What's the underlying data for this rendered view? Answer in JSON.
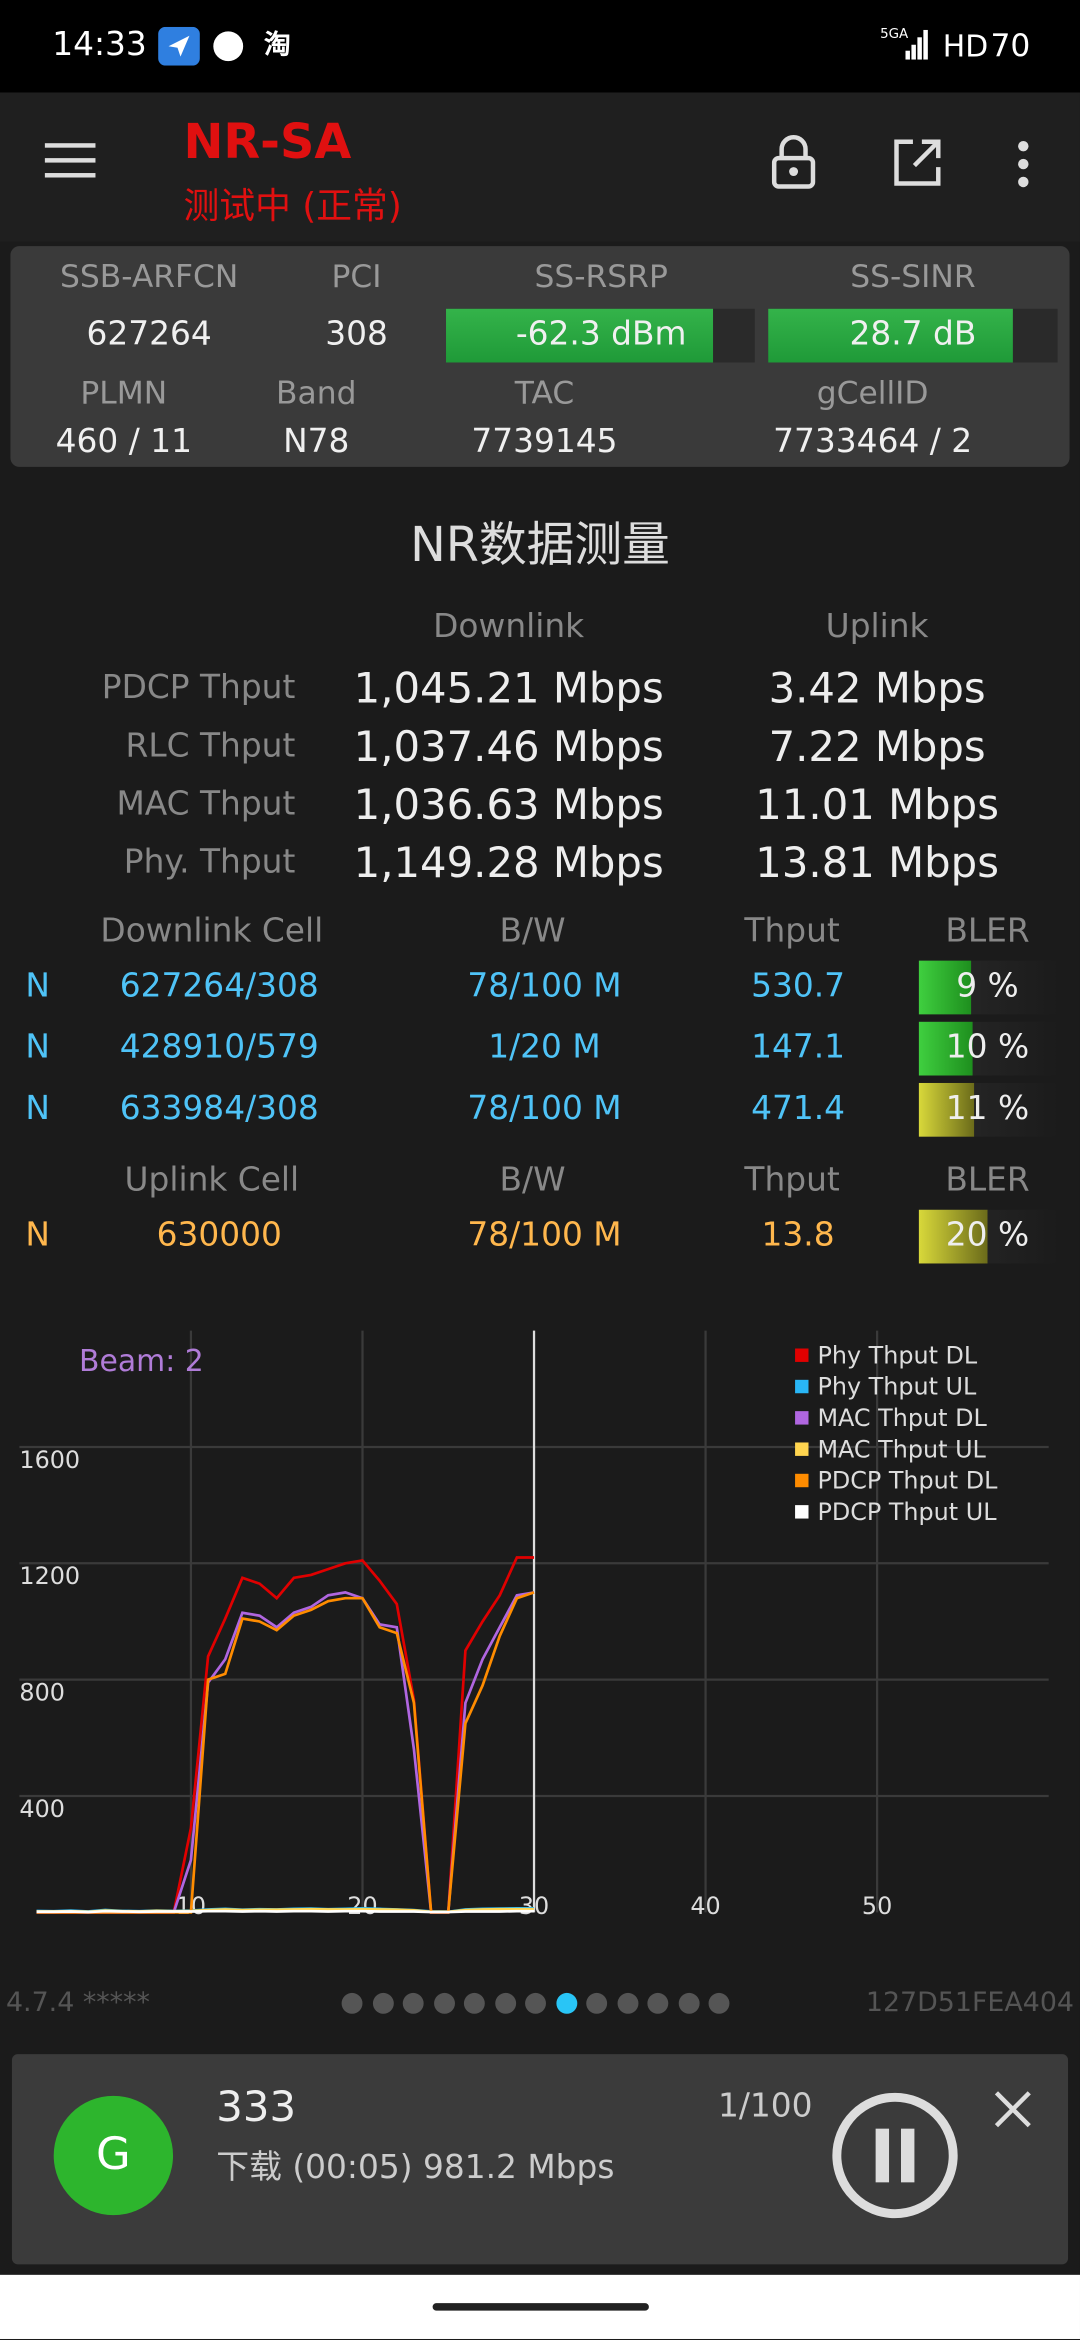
{
  "status_bar": {
    "time": "14:33",
    "app_icon": "淘",
    "network": "5GA",
    "hd": "HD",
    "battery": "70"
  },
  "header": {
    "title": "NR-SA",
    "status": "测试中 (正常)"
  },
  "serving_cell": {
    "labels_row1": [
      "SSB-ARFCN",
      "PCI",
      "SS-RSRP",
      "SS-SINR"
    ],
    "values_row1": [
      "627264",
      "308",
      "-62.3 dBm",
      "28.7 dB"
    ],
    "labels_row2": [
      "PLMN",
      "Band",
      "TAC",
      "gCellID"
    ],
    "values_row2": [
      "460 / 11",
      "N78",
      "7739145",
      "7733464 / 2"
    ]
  },
  "measurement": {
    "title": "NR数据测量",
    "columns": [
      "Downlink",
      "Uplink"
    ],
    "rows": [
      {
        "label": "PDCP Thput",
        "downlink": "1,045.21 Mbps",
        "uplink": "3.42 Mbps"
      },
      {
        "label": "RLC Thput",
        "downlink": "1,037.46 Mbps",
        "uplink": "7.22 Mbps"
      },
      {
        "label": "MAC Thput",
        "downlink": "1,036.63 Mbps",
        "uplink": "11.01 Mbps"
      },
      {
        "label": "Phy. Thput",
        "downlink": "1,149.28 Mbps",
        "uplink": "13.81 Mbps"
      }
    ]
  },
  "downlink_cells": {
    "columns": [
      "Downlink Cell",
      "B/W",
      "Thput",
      "BLER"
    ],
    "rows": [
      [
        "N",
        "627264/308",
        "78/100 M",
        "530.7",
        "9 %"
      ],
      [
        "N",
        "428910/579",
        "1/20 M",
        "147.1",
        "10 %"
      ],
      [
        "N",
        "633984/308",
        "78/100 M",
        "471.4",
        "11 %"
      ]
    ]
  },
  "uplink_cells": {
    "columns": [
      "Uplink Cell",
      "B/W",
      "Thput",
      "BLER"
    ],
    "rows": [
      [
        "N",
        "630000",
        "78/100 M",
        "13.8",
        "20 %"
      ]
    ]
  },
  "chart": {
    "type": "line",
    "annotation": "Beam: 2",
    "x": [
      1,
      2,
      3,
      4,
      5,
      6,
      7,
      8,
      9,
      10,
      11,
      12,
      13,
      14,
      15,
      16,
      17,
      18,
      19,
      20,
      21,
      22,
      23,
      24,
      25,
      26,
      27,
      28,
      29,
      30
    ],
    "xlim": [
      0,
      60
    ],
    "xticks": [
      10,
      20,
      30,
      40,
      50
    ],
    "ylim": [
      0,
      2000
    ],
    "yticks": [
      400,
      800,
      1200,
      1600
    ],
    "grid": true,
    "series": [
      {
        "name": "Phy Thput DL",
        "color": "#e00000",
        "values": [
          0,
          0,
          0,
          0,
          0,
          0,
          0,
          0,
          0,
          290,
          880,
          1010,
          1150,
          1130,
          1080,
          1150,
          1160,
          1180,
          1200,
          1210,
          1140,
          1060,
          730,
          0,
          0,
          900,
          1000,
          1090,
          1220,
          1220
        ]
      },
      {
        "name": "Phy Thput UL",
        "color": "#29b6f6",
        "values": [
          5,
          4,
          6,
          3,
          8,
          5,
          4,
          6,
          5,
          6,
          10,
          12,
          9,
          11,
          10,
          12,
          13,
          11,
          12,
          14,
          12,
          10,
          8,
          3,
          2,
          10,
          12,
          13,
          14,
          14
        ]
      },
      {
        "name": "MAC Thput DL",
        "color": "#b066e0",
        "values": [
          0,
          0,
          0,
          0,
          0,
          0,
          0,
          0,
          0,
          180,
          790,
          870,
          1030,
          1020,
          980,
          1030,
          1050,
          1090,
          1100,
          1080,
          990,
          980,
          560,
          0,
          0,
          720,
          870,
          980,
          1090,
          1100
        ]
      },
      {
        "name": "MAC Thput UL",
        "color": "#ffd54f",
        "values": [
          3,
          3,
          4,
          2,
          6,
          4,
          3,
          5,
          4,
          5,
          8,
          10,
          8,
          9,
          9,
          10,
          11,
          10,
          10,
          11,
          10,
          9,
          7,
          2,
          2,
          8,
          10,
          11,
          11,
          11
        ]
      },
      {
        "name": "PDCP Thput DL",
        "color": "#ff8c00",
        "values": [
          0,
          0,
          0,
          0,
          0,
          0,
          0,
          0,
          0,
          0,
          800,
          820,
          1010,
          1000,
          970,
          1020,
          1040,
          1070,
          1080,
          1080,
          980,
          960,
          720,
          0,
          0,
          650,
          780,
          950,
          1080,
          1100
        ]
      },
      {
        "name": "PDCP Thput UL",
        "color": "#ffffff",
        "values": [
          2,
          2,
          3,
          1,
          4,
          3,
          2,
          3,
          3,
          3,
          4,
          4,
          3,
          4,
          3,
          4,
          4,
          3,
          4,
          4,
          3,
          3,
          3,
          1,
          1,
          3,
          3,
          3,
          4,
          4
        ]
      }
    ]
  },
  "footer": {
    "version": "4.7.4 *****",
    "device_id": "127D51FEA404"
  },
  "task_card": {
    "icon": "G",
    "name": "333",
    "progress": "1/100",
    "detail": "下载 (00:05) 981.2 Mbps"
  }
}
